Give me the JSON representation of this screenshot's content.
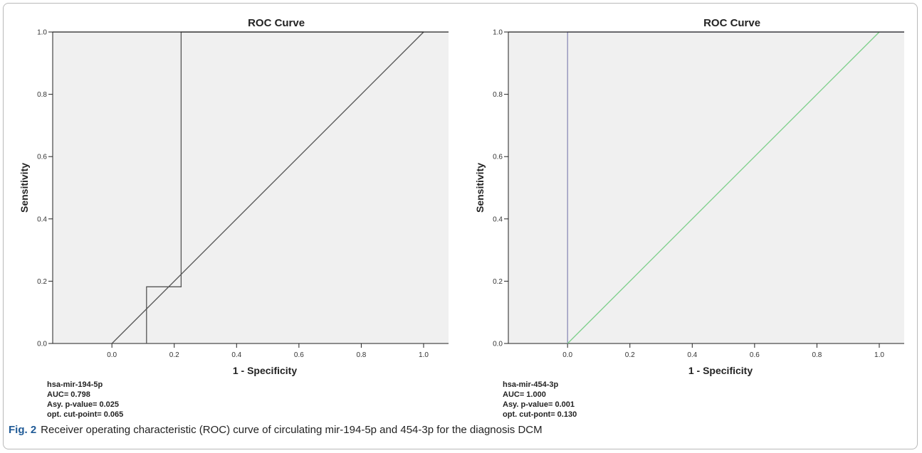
{
  "figure": {
    "caption_label": "Fig. 2",
    "caption_text": "Receiver operating characteristic (ROC) curve of circulating mir-194-5p and 454-3p for the diagnosis DCM"
  },
  "chart_data": [
    {
      "type": "line",
      "title": "ROC Curve",
      "xlabel": "1 - Specificity",
      "ylabel": "Sensitivity",
      "xlim": [
        -0.19,
        1.08
      ],
      "ylim": [
        0,
        1
      ],
      "xticks": [
        "0.0",
        "0.2",
        "0.4",
        "0.6",
        "0.8",
        "1.0"
      ],
      "yticks": [
        "0.0",
        "0.2",
        "0.4",
        "0.6",
        "0.8",
        "1.0"
      ],
      "grid": false,
      "plot_background": "#f0f0f0",
      "series": [
        {
          "color": "#555555",
          "x": [
            0.111,
            0.111,
            0.222,
            0.222,
            1.0
          ],
          "y": [
            0.0,
            0.182,
            0.182,
            1.0,
            1.0
          ]
        },
        {
          "color": "#555555",
          "reference": true,
          "x": [
            0.0,
            1.0
          ],
          "y": [
            0.0,
            1.0
          ]
        }
      ],
      "stats": [
        "hsa-mir-194-5p",
        "AUC= 0.798",
        "Asy. p-value= 0.025",
        "opt. cut-point= 0.065"
      ]
    },
    {
      "type": "line",
      "title": "ROC Curve",
      "xlabel": "1 - Specificity",
      "ylabel": "Sensitivity",
      "xlim": [
        -0.19,
        1.08
      ],
      "ylim": [
        0,
        1
      ],
      "xticks": [
        "0.0",
        "0.2",
        "0.4",
        "0.6",
        "0.8",
        "1.0"
      ],
      "yticks": [
        "0.0",
        "0.2",
        "0.4",
        "0.6",
        "0.8",
        "1.0"
      ],
      "grid": false,
      "plot_background": "#f0f0f0",
      "series": [
        {
          "color": "#8a8ab8",
          "x": [
            0.0,
            0.0,
            1.08
          ],
          "y": [
            0.0,
            1.0,
            1.0
          ]
        },
        {
          "color": "#7ccf8a",
          "reference": true,
          "x": [
            0.0,
            1.0
          ],
          "y": [
            0.0,
            1.0
          ]
        }
      ],
      "stats": [
        "hsa-mir-454-3p",
        "AUC= 1.000",
        "Asy. p-value= 0.001",
        "opt. cut-pont= 0.130"
      ]
    }
  ]
}
